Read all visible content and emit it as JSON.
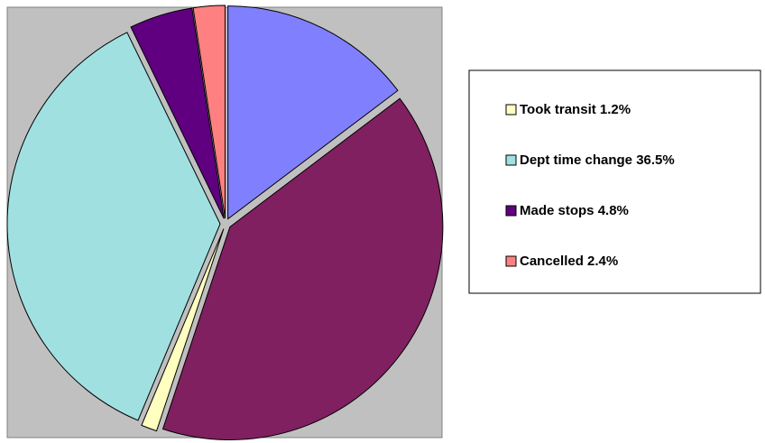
{
  "chart_data": {
    "type": "pie",
    "categories": [
      null,
      null,
      "Took transit",
      "Dept time change",
      "Made stops",
      "Cancelled"
    ],
    "values": [
      14.7,
      40.4,
      1.2,
      36.5,
      4.8,
      2.4
    ],
    "value_labels": [
      null,
      null,
      "1.2%",
      "36.5%",
      "4.8%",
      "2.4%"
    ],
    "colors": [
      "#8080ff",
      "#802060",
      "#ffffc0",
      "#a0e0e0",
      "#600080",
      "#ff8080"
    ],
    "legend": "right"
  }
}
